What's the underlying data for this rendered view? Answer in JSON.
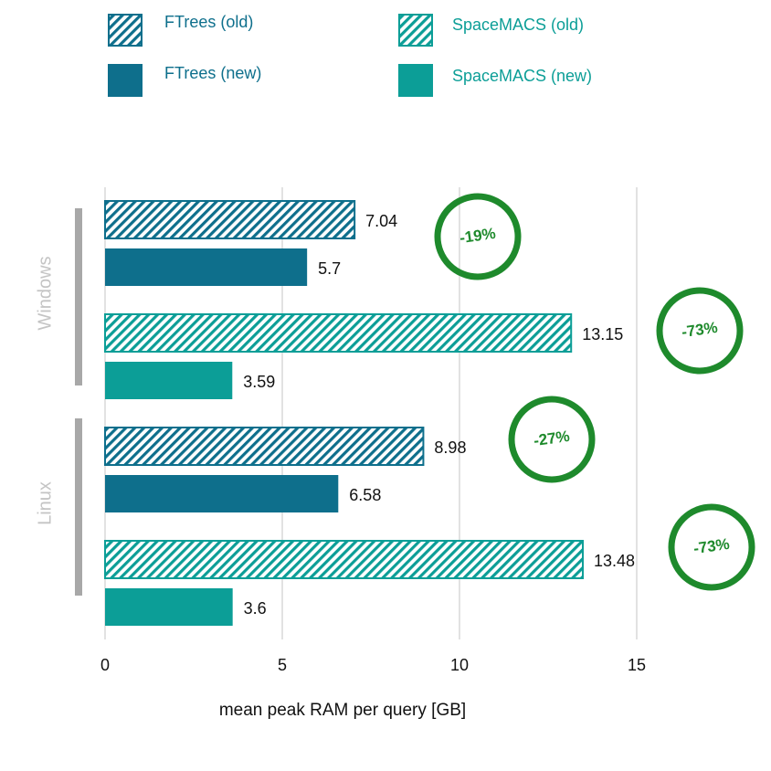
{
  "colors": {
    "ftrees": "#0e6f8c",
    "spacemacs": "#0c9e97",
    "badge": "#1e8a2c",
    "grid": "#d8d8d8",
    "group_bar": "#a8a8a8",
    "group_text": "#c4c4c4"
  },
  "legend": [
    {
      "label": "FTrees (old)",
      "series": "ftrees",
      "pattern": "hatched"
    },
    {
      "label": "SpaceMACS (old)",
      "series": "spacemacs",
      "pattern": "hatched"
    },
    {
      "label": "FTrees (new)",
      "series": "ftrees",
      "pattern": "solid"
    },
    {
      "label": "SpaceMACS (new)",
      "series": "spacemacs",
      "pattern": "solid"
    }
  ],
  "chart_data": {
    "type": "bar",
    "orientation": "horizontal",
    "xlabel": "mean peak RAM per query [GB]",
    "xlim": [
      0,
      15
    ],
    "xticks": [
      0,
      5,
      10,
      15
    ],
    "grid": true,
    "legend_position": "top",
    "groups": [
      {
        "label": "Windows",
        "bars": [
          {
            "series": "FTrees (old)",
            "value": 7.04,
            "label": "7.04"
          },
          {
            "series": "FTrees (new)",
            "value": 5.7,
            "label": "5.7"
          },
          {
            "series": "SpaceMACS (old)",
            "value": 13.15,
            "label": "13.15"
          },
          {
            "series": "SpaceMACS (new)",
            "value": 3.59,
            "label": "3.59"
          }
        ],
        "annotations": [
          "-19%",
          "-73%"
        ]
      },
      {
        "label": "Linux",
        "bars": [
          {
            "series": "FTrees (old)",
            "value": 8.98,
            "label": "8.98"
          },
          {
            "series": "FTrees (new)",
            "value": 6.58,
            "label": "6.58"
          },
          {
            "series": "SpaceMACS (old)",
            "value": 13.48,
            "label": "13.48"
          },
          {
            "series": "SpaceMACS (new)",
            "value": 3.6,
            "label": "3.6"
          }
        ],
        "annotations": [
          "-27%",
          "-73%"
        ]
      }
    ]
  }
}
